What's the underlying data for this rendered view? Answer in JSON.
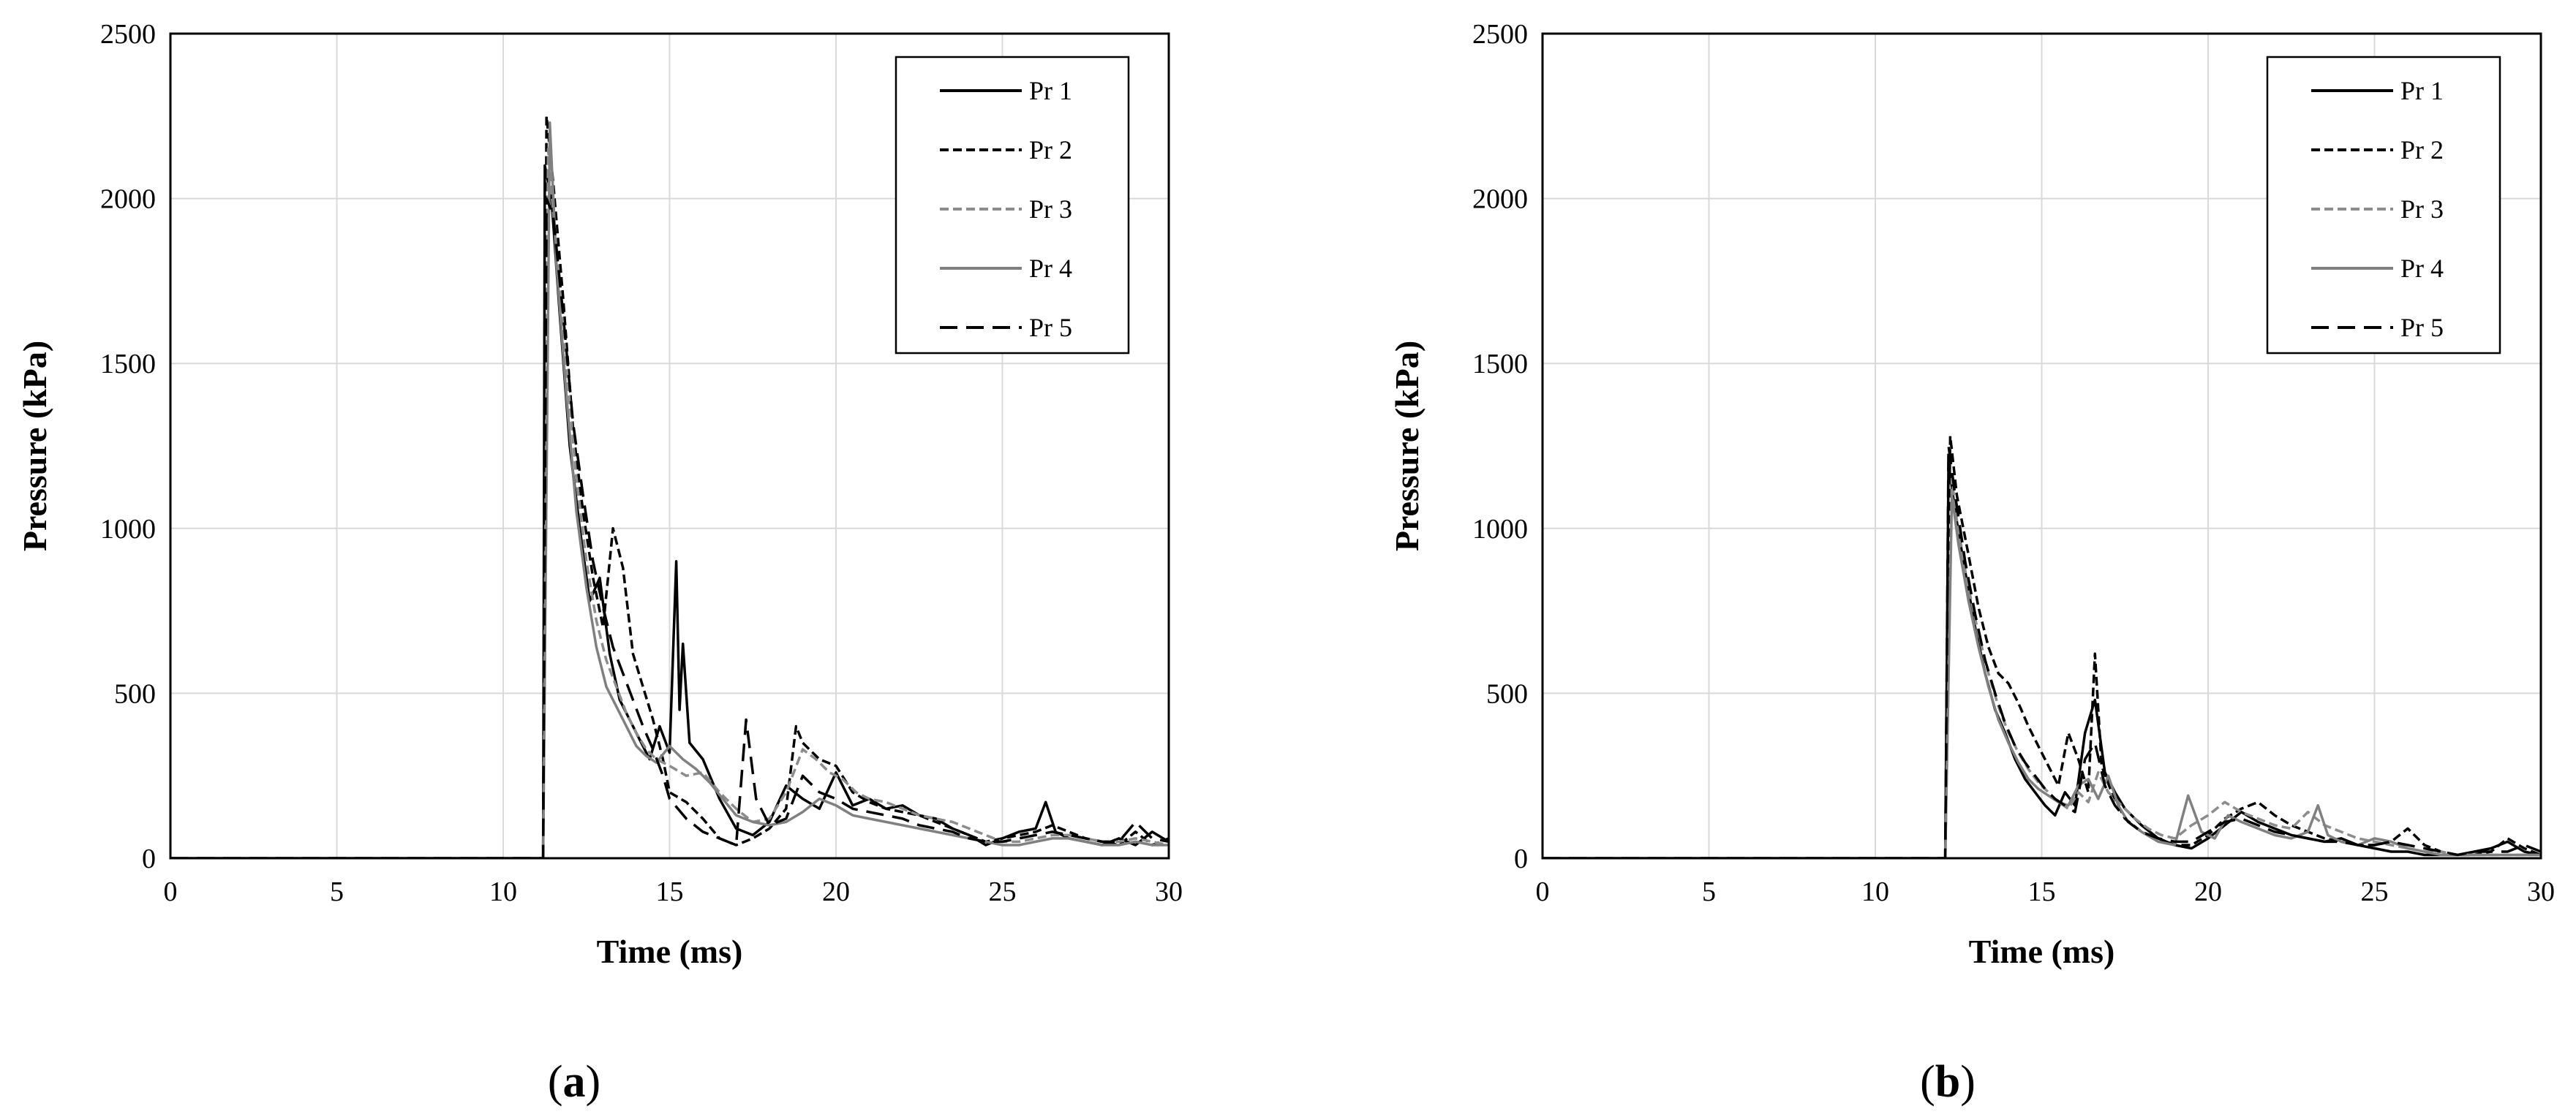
{
  "chart_data": [
    {
      "type": "line",
      "panel_label": "a",
      "xlabel": "Time (ms)",
      "ylabel": "Pressure (kPa)",
      "xlim": [
        0,
        30
      ],
      "ylim": [
        0,
        2500
      ],
      "xticks": [
        0,
        5,
        10,
        15,
        20,
        25,
        30
      ],
      "yticks": [
        0,
        500,
        1000,
        1500,
        2000,
        2500
      ],
      "grid": true,
      "legend_position": "top-right",
      "series": [
        {
          "name": "Pr 1",
          "style": "solid",
          "color": "#000000",
          "x": [
            0,
            11.2,
            11.25,
            11.45,
            11.7,
            12.0,
            12.3,
            12.6,
            12.9,
            13.2,
            13.5,
            13.8,
            14.1,
            14.4,
            14.7,
            15.0,
            15.2,
            15.3,
            15.4,
            15.6,
            16.0,
            16.5,
            17.0,
            17.5,
            18.0,
            18.5,
            19.0,
            19.5,
            20.0,
            20.5,
            21.0,
            21.5,
            22.0,
            22.5,
            23.0,
            23.5,
            24.0,
            24.5,
            25.0,
            25.5,
            26.0,
            26.3,
            26.6,
            27.0,
            27.5,
            28.0,
            28.5,
            29.0,
            29.5,
            30.0
          ],
          "y": [
            0,
            0,
            2100,
            2000,
            1650,
            1250,
            1000,
            780,
            850,
            620,
            480,
            420,
            360,
            300,
            400,
            320,
            900,
            450,
            650,
            350,
            300,
            180,
            90,
            70,
            110,
            220,
            180,
            150,
            260,
            160,
            180,
            150,
            160,
            130,
            120,
            90,
            70,
            40,
            60,
            80,
            90,
            170,
            80,
            60,
            50,
            40,
            60,
            40,
            80,
            50
          ]
        },
        {
          "name": "Pr 2",
          "style": "dashed-short",
          "color": "#000000",
          "x": [
            0,
            11.2,
            11.3,
            11.5,
            11.8,
            12.1,
            12.4,
            12.7,
            13.0,
            13.3,
            13.6,
            13.9,
            14.2,
            14.5,
            14.8,
            15.0,
            15.5,
            16.0,
            16.5,
            17.0,
            17.5,
            18.0,
            18.5,
            18.8,
            19.0,
            19.5,
            20.0,
            20.5,
            21.0,
            21.5,
            22.0,
            22.5,
            23.0,
            23.5,
            24.0,
            24.5,
            25.0,
            25.5,
            26.0,
            26.5,
            27.0,
            27.5,
            28.0,
            28.5,
            29.0,
            29.5,
            30.0
          ],
          "y": [
            0,
            0,
            2250,
            2050,
            1700,
            1300,
            1050,
            850,
            700,
            1000,
            880,
            620,
            520,
            420,
            300,
            200,
            170,
            120,
            60,
            40,
            60,
            90,
            150,
            400,
            350,
            300,
            280,
            200,
            170,
            150,
            140,
            130,
            110,
            90,
            70,
            50,
            60,
            70,
            80,
            100,
            80,
            60,
            50,
            40,
            80,
            40,
            60
          ]
        },
        {
          "name": "Pr 3",
          "style": "dashed-short",
          "color": "#8c8c8c",
          "x": [
            0,
            11.2,
            11.35,
            11.55,
            11.85,
            12.2,
            12.5,
            12.8,
            13.1,
            13.4,
            13.7,
            14.0,
            14.3,
            14.6,
            15.0,
            15.5,
            16.0,
            16.5,
            17.0,
            17.5,
            18.0,
            18.5,
            19.0,
            19.4,
            19.8,
            20.2,
            20.6,
            21.0,
            21.5,
            22.0,
            22.5,
            23.0,
            23.5,
            24.0,
            24.5,
            25.0,
            25.5,
            26.0,
            26.5,
            27.0,
            27.5,
            28.0,
            28.5,
            29.0,
            29.5,
            30.0
          ],
          "y": [
            0,
            0,
            2150,
            1900,
            1550,
            1150,
            900,
            720,
            600,
            520,
            440,
            380,
            330,
            300,
            280,
            250,
            260,
            200,
            150,
            110,
            120,
            200,
            330,
            300,
            260,
            240,
            200,
            180,
            170,
            150,
            130,
            120,
            110,
            90,
            70,
            50,
            50,
            60,
            70,
            70,
            60,
            50,
            50,
            60,
            50,
            40
          ]
        },
        {
          "name": "Pr 4",
          "style": "solid",
          "color": "#808080",
          "x": [
            0,
            11.2,
            11.4,
            11.6,
            11.9,
            12.2,
            12.5,
            12.8,
            13.1,
            13.4,
            13.7,
            14.0,
            14.3,
            14.6,
            15.0,
            15.4,
            15.8,
            16.2,
            16.6,
            17.0,
            17.5,
            18.0,
            18.5,
            19.0,
            19.5,
            20.0,
            20.5,
            21.0,
            21.5,
            22.0,
            22.5,
            23.0,
            23.5,
            24.0,
            24.5,
            25.0,
            25.5,
            26.0,
            26.5,
            27.0,
            27.5,
            28.0,
            28.5,
            29.0,
            29.5,
            30.0
          ],
          "y": [
            0,
            0,
            2230,
            1800,
            1400,
            1050,
            820,
            640,
            520,
            460,
            400,
            340,
            310,
            290,
            340,
            300,
            270,
            230,
            180,
            130,
            110,
            100,
            110,
            140,
            180,
            160,
            130,
            120,
            110,
            100,
            90,
            80,
            70,
            60,
            50,
            40,
            40,
            50,
            60,
            60,
            50,
            40,
            40,
            50,
            40,
            40
          ]
        },
        {
          "name": "Pr 5",
          "style": "dashed-long",
          "color": "#000000",
          "x": [
            0,
            11.2,
            11.3,
            11.5,
            11.8,
            12.1,
            12.4,
            12.7,
            13.0,
            13.3,
            13.6,
            13.9,
            14.2,
            14.5,
            14.8,
            15.0,
            15.5,
            16.0,
            16.5,
            17.0,
            17.3,
            17.6,
            18.0,
            18.5,
            19.0,
            19.5,
            20.0,
            20.5,
            21.0,
            21.5,
            22.0,
            22.5,
            23.0,
            23.5,
            24.0,
            24.5,
            25.0,
            25.5,
            26.0,
            26.5,
            27.0,
            27.5,
            28.0,
            28.5,
            29.0,
            29.5,
            30.0
          ],
          "y": [
            0,
            0,
            2000,
            1950,
            1650,
            1320,
            1100,
            900,
            760,
            640,
            560,
            480,
            400,
            330,
            250,
            180,
            120,
            80,
            60,
            40,
            420,
            180,
            100,
            120,
            250,
            200,
            180,
            150,
            140,
            130,
            120,
            100,
            90,
            80,
            60,
            50,
            50,
            60,
            70,
            80,
            70,
            60,
            50,
            50,
            110,
            60,
            50
          ]
        }
      ]
    },
    {
      "type": "line",
      "panel_label": "b",
      "xlabel": "Time (ms)",
      "ylabel": "Pressure (kPa)",
      "xlim": [
        0,
        30
      ],
      "ylim": [
        0,
        2500
      ],
      "xticks": [
        0,
        5,
        10,
        15,
        20,
        25,
        30
      ],
      "yticks": [
        0,
        500,
        1000,
        1500,
        2000,
        2500
      ],
      "grid": true,
      "legend_position": "top-right",
      "series": [
        {
          "name": "Pr 1",
          "style": "solid",
          "color": "#000000",
          "x": [
            0,
            12.1,
            12.2,
            12.4,
            12.7,
            13.0,
            13.3,
            13.6,
            13.9,
            14.2,
            14.5,
            14.8,
            15.1,
            15.4,
            15.7,
            16.0,
            16.3,
            16.6,
            16.9,
            17.2,
            17.5,
            18.0,
            18.5,
            19.0,
            19.5,
            20.0,
            20.5,
            21.0,
            21.5,
            22.0,
            22.5,
            23.0,
            23.5,
            24.0,
            24.5,
            25.0,
            25.5,
            26.0,
            26.5,
            27.0,
            27.5,
            28.0,
            28.5,
            29.0,
            29.5,
            30.0
          ],
          "y": [
            0,
            0,
            1200,
            1050,
            870,
            700,
            560,
            450,
            380,
            300,
            240,
            200,
            160,
            130,
            200,
            160,
            380,
            480,
            260,
            200,
            150,
            100,
            60,
            40,
            30,
            60,
            100,
            140,
            110,
            90,
            70,
            60,
            50,
            60,
            40,
            30,
            20,
            20,
            10,
            10,
            10,
            20,
            30,
            50,
            20,
            10
          ]
        },
        {
          "name": "Pr 2",
          "style": "dashed-short",
          "color": "#000000",
          "x": [
            0,
            12.1,
            12.25,
            12.45,
            12.8,
            13.1,
            13.4,
            13.7,
            14.0,
            14.3,
            14.6,
            14.9,
            15.2,
            15.5,
            15.8,
            16.1,
            16.4,
            16.6,
            16.8,
            17.1,
            17.5,
            18.0,
            18.5,
            19.0,
            19.5,
            20.0,
            20.5,
            21.0,
            21.5,
            22.0,
            22.5,
            23.0,
            23.5,
            24.0,
            24.5,
            25.0,
            25.5,
            26.0,
            26.5,
            27.0,
            27.5,
            28.0,
            28.5,
            29.0,
            29.5,
            30.0
          ],
          "y": [
            0,
            0,
            1280,
            1100,
            920,
            760,
            640,
            560,
            530,
            470,
            400,
            340,
            280,
            220,
            380,
            300,
            200,
            620,
            280,
            200,
            120,
            80,
            60,
            40,
            40,
            70,
            120,
            150,
            170,
            130,
            100,
            80,
            60,
            50,
            40,
            40,
            50,
            90,
            40,
            20,
            10,
            10,
            20,
            60,
            30,
            10
          ]
        },
        {
          "name": "Pr 3",
          "style": "dashed-short",
          "color": "#8c8c8c",
          "x": [
            0,
            12.1,
            12.3,
            12.5,
            12.8,
            13.1,
            13.4,
            13.7,
            14.0,
            14.3,
            14.6,
            14.9,
            15.2,
            15.5,
            15.8,
            16.1,
            16.4,
            16.7,
            17.0,
            17.4,
            17.8,
            18.2,
            18.6,
            19.0,
            19.5,
            20.0,
            20.5,
            21.0,
            21.5,
            22.0,
            22.5,
            23.0,
            23.5,
            24.0,
            24.5,
            25.0,
            25.5,
            26.0,
            26.5,
            27.0,
            27.5,
            28.0,
            28.5,
            29.0,
            29.5,
            30.0
          ],
          "y": [
            0,
            0,
            1150,
            980,
            820,
            680,
            560,
            460,
            380,
            320,
            270,
            230,
            200,
            170,
            150,
            200,
            170,
            260,
            200,
            160,
            120,
            90,
            70,
            60,
            100,
            130,
            170,
            140,
            120,
            100,
            90,
            140,
            100,
            80,
            60,
            50,
            40,
            30,
            20,
            20,
            10,
            10,
            10,
            10,
            10,
            10
          ]
        },
        {
          "name": "Pr 4",
          "style": "solid",
          "color": "#808080",
          "x": [
            0,
            12.1,
            12.3,
            12.5,
            12.8,
            13.1,
            13.4,
            13.7,
            14.0,
            14.3,
            14.6,
            14.9,
            15.2,
            15.5,
            15.8,
            16.1,
            16.4,
            16.7,
            17.0,
            17.3,
            17.6,
            18.0,
            18.5,
            19.0,
            19.4,
            19.8,
            20.2,
            20.6,
            21.0,
            21.5,
            22.0,
            22.5,
            23.0,
            23.3,
            23.6,
            24.0,
            24.5,
            25.0,
            25.5,
            26.0,
            26.5,
            27.0,
            27.5,
            28.0,
            28.5,
            29.0,
            29.5,
            30.0
          ],
          "y": [
            0,
            0,
            1100,
            950,
            780,
            640,
            520,
            420,
            350,
            290,
            240,
            210,
            190,
            170,
            160,
            220,
            240,
            180,
            250,
            160,
            110,
            80,
            50,
            40,
            190,
            80,
            60,
            130,
            110,
            90,
            70,
            60,
            80,
            160,
            70,
            50,
            40,
            60,
            50,
            30,
            20,
            10,
            10,
            10,
            10,
            10,
            10,
            10
          ]
        },
        {
          "name": "Pr 5",
          "style": "dashed-long",
          "color": "#000000",
          "x": [
            0,
            12.1,
            12.2,
            12.4,
            12.7,
            13.0,
            13.3,
            13.6,
            13.9,
            14.2,
            14.5,
            14.8,
            15.1,
            15.4,
            15.7,
            16.0,
            16.3,
            16.6,
            16.9,
            17.2,
            17.6,
            18.0,
            18.5,
            19.0,
            19.5,
            20.0,
            20.5,
            21.0,
            21.5,
            22.0,
            22.5,
            23.0,
            23.5,
            24.0,
            24.5,
            25.0,
            25.5,
            26.0,
            26.5,
            27.0,
            27.5,
            28.0,
            28.5,
            29.0,
            29.5,
            30.0
          ],
          "y": [
            0,
            0,
            1250,
            1100,
            900,
            740,
            600,
            500,
            410,
            340,
            290,
            250,
            210,
            180,
            160,
            140,
            300,
            350,
            220,
            160,
            110,
            80,
            60,
            50,
            50,
            80,
            110,
            120,
            100,
            80,
            70,
            60,
            50,
            50,
            40,
            40,
            50,
            40,
            30,
            20,
            10,
            20,
            20,
            20,
            40,
            20
          ]
        }
      ]
    }
  ]
}
